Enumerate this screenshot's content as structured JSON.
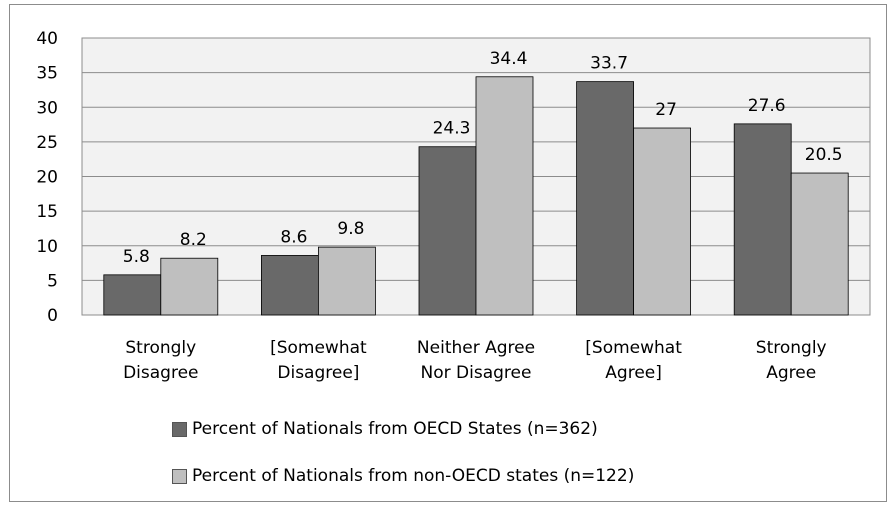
{
  "chart_data": {
    "type": "bar",
    "categories": [
      [
        "Strongly",
        "Disagree"
      ],
      [
        "[Somewhat",
        "Disagree]"
      ],
      [
        "Neither Agree",
        "Nor Disagree"
      ],
      [
        "[Somewhat",
        "Agree]"
      ],
      [
        "Strongly",
        "Agree"
      ]
    ],
    "series": [
      {
        "name": "Percent of Nationals from OECD States (n=362)",
        "values": [
          5.8,
          8.6,
          24.3,
          33.7,
          27.6
        ],
        "color": "#696969"
      },
      {
        "name": "Percent of Nationals from non-OECD states (n=122)",
        "values": [
          8.2,
          9.8,
          34.4,
          27,
          20.5
        ],
        "color": "#bfbfbf"
      }
    ],
    "ylim": [
      0,
      40
    ],
    "yticks": [
      0,
      5,
      10,
      15,
      20,
      25,
      30,
      35,
      40
    ],
    "grid": true,
    "legend_position": "bottom"
  }
}
